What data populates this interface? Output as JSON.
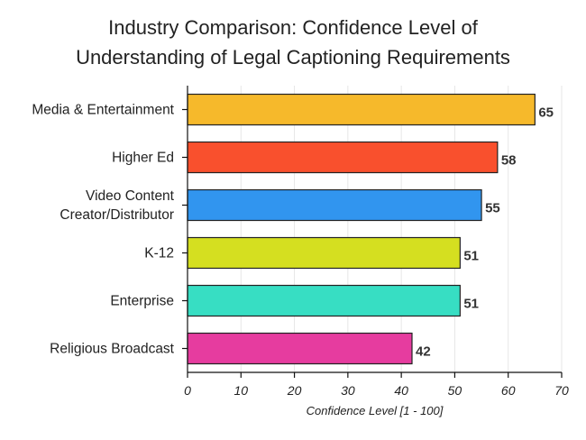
{
  "chart_data": {
    "type": "bar",
    "orientation": "horizontal",
    "title": [
      "Industry Comparison: Confidence Level of",
      "Understanding of Legal Captioning Requirements"
    ],
    "xlabel": "Confidence Level [1 - 100]",
    "ylabel": "",
    "xlim": [
      0,
      70
    ],
    "xticks": [
      0,
      10,
      20,
      30,
      40,
      50,
      60,
      70
    ],
    "grid": true,
    "categories": [
      [
        "Media & Entertainment"
      ],
      [
        "Higher Ed"
      ],
      [
        "Video Content",
        "Creator/Distributor"
      ],
      [
        "K-12"
      ],
      [
        "Enterprise"
      ],
      [
        "Religious Broadcast"
      ]
    ],
    "values": [
      65,
      58,
      55,
      51,
      51,
      42
    ],
    "colors": [
      "#f6b92b",
      "#f9502d",
      "#3195ef",
      "#d5df20",
      "#37dec3",
      "#e63c9f"
    ]
  }
}
